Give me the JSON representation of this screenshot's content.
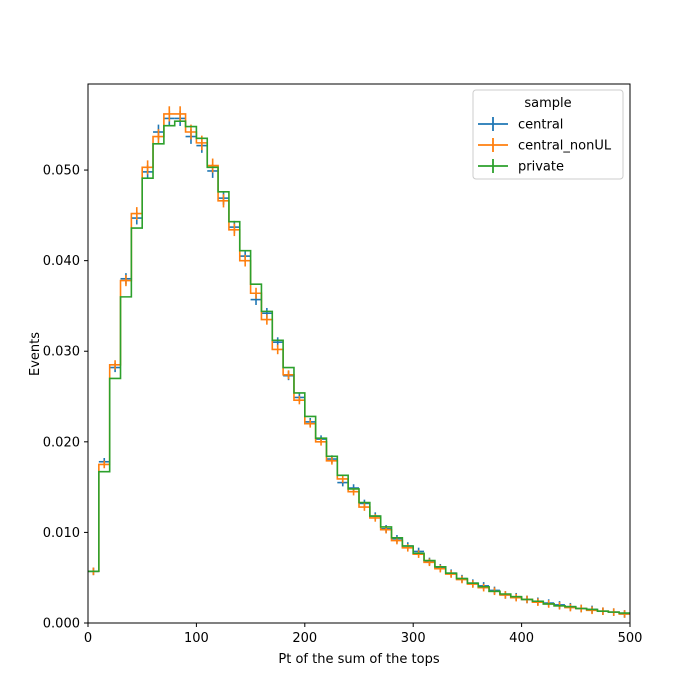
{
  "chart_data": {
    "type": "line",
    "xlabel": "Pt of the sum of the tops",
    "ylabel": "Events",
    "xlim": [
      0,
      500
    ],
    "ylim": [
      0,
      0.0595
    ],
    "xticks": [
      0,
      100,
      200,
      300,
      400,
      500
    ],
    "yticks": [
      0.0,
      0.01,
      0.02,
      0.03,
      0.04,
      0.05
    ],
    "ytick_labels": [
      "0.000",
      "0.010",
      "0.020",
      "0.030",
      "0.040",
      "0.050"
    ],
    "grid": false,
    "legend": {
      "title": "sample",
      "placement": "top-right"
    },
    "bin_edges": [
      0,
      10,
      20,
      30,
      40,
      50,
      60,
      70,
      80,
      90,
      100,
      110,
      120,
      130,
      140,
      150,
      160,
      170,
      180,
      190,
      200,
      210,
      220,
      230,
      240,
      250,
      260,
      270,
      280,
      290,
      300,
      310,
      320,
      330,
      340,
      350,
      360,
      370,
      380,
      390,
      400,
      410,
      420,
      430,
      440,
      450,
      460,
      470,
      480,
      490,
      500
    ],
    "series": [
      {
        "name": "central",
        "color": "#1f77b4",
        "style": "errorbar",
        "values": [
          0.0057,
          0.0178,
          0.0282,
          0.038,
          0.0447,
          0.0498,
          0.0542,
          0.0557,
          0.0557,
          0.0537,
          0.0527,
          0.0499,
          0.0469,
          0.0437,
          0.0405,
          0.0357,
          0.0342,
          0.031,
          0.0273,
          0.0249,
          0.0222,
          0.0203,
          0.0181,
          0.0155,
          0.0149,
          0.0132,
          0.0118,
          0.0104,
          0.0093,
          0.0085,
          0.0079,
          0.0068,
          0.0061,
          0.0055,
          0.0049,
          0.0044,
          0.0041,
          0.0036,
          0.0031,
          0.0029,
          0.0026,
          0.0024,
          0.0022,
          0.002,
          0.0018,
          0.0016,
          0.0015,
          0.0013,
          0.0012,
          0.001
        ]
      },
      {
        "name": "central_nonUL",
        "color": "#ff7f0e",
        "style": "errorbar-step",
        "values": [
          0.0057,
          0.0175,
          0.0285,
          0.0378,
          0.0452,
          0.0503,
          0.0537,
          0.0562,
          0.0562,
          0.0542,
          0.053,
          0.0505,
          0.0466,
          0.0434,
          0.04,
          0.0364,
          0.0335,
          0.0302,
          0.0274,
          0.0246,
          0.022,
          0.02,
          0.0179,
          0.0159,
          0.0145,
          0.0128,
          0.0116,
          0.0103,
          0.0091,
          0.0083,
          0.0076,
          0.0067,
          0.006,
          0.0054,
          0.0048,
          0.0043,
          0.0039,
          0.0035,
          0.0031,
          0.0028,
          0.0026,
          0.0023,
          0.0021,
          0.0019,
          0.0017,
          0.0016,
          0.0014,
          0.0013,
          0.0012,
          0.001
        ]
      },
      {
        "name": "private",
        "color": "#2ca02c",
        "style": "step",
        "values": [
          0.0057,
          0.0167,
          0.027,
          0.036,
          0.0436,
          0.0491,
          0.0529,
          0.0549,
          0.0554,
          0.0548,
          0.0535,
          0.0503,
          0.0476,
          0.0443,
          0.0411,
          0.0374,
          0.0344,
          0.0312,
          0.0282,
          0.0254,
          0.0228,
          0.0204,
          0.0184,
          0.0163,
          0.0148,
          0.0133,
          0.0118,
          0.0106,
          0.0094,
          0.0085,
          0.0077,
          0.0069,
          0.0062,
          0.0055,
          0.0049,
          0.0044,
          0.004,
          0.0035,
          0.0032,
          0.0029,
          0.0026,
          0.0024,
          0.0021,
          0.0019,
          0.0018,
          0.0016,
          0.0015,
          0.0013,
          0.0012,
          0.0011
        ]
      }
    ]
  }
}
